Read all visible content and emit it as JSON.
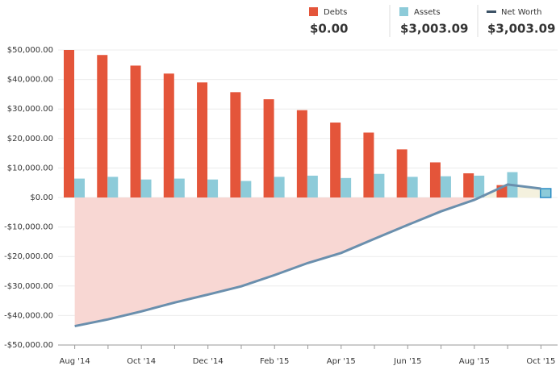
{
  "chart_data": {
    "type": "bar-line",
    "categories": [
      "Aug '14",
      null,
      "Oct '14",
      null,
      "Dec '14",
      null,
      "Feb '15",
      null,
      "Apr '15",
      null,
      "Jun '15",
      null,
      "Aug '15",
      null,
      "Oct '15"
    ],
    "series": [
      {
        "name": "Debts",
        "color": "#e4553a",
        "values": [
          50000,
          48300,
          44700,
          42000,
          39000,
          35700,
          33300,
          29600,
          25400,
          22000,
          16300,
          11900,
          8200,
          4200,
          0
        ],
        "total": {
          "value": 0,
          "label": "$0.00"
        }
      },
      {
        "name": "Assets",
        "color": "#8dcbd9",
        "values": [
          6400,
          7000,
          6100,
          6400,
          6100,
          5600,
          7000,
          7400,
          6600,
          8000,
          7000,
          7200,
          7400,
          8600,
          3003.09
        ],
        "total": {
          "value": 3003.09,
          "label": "$3,003.09"
        }
      },
      {
        "name": "Net Worth",
        "color": "#6a8fad",
        "values": [
          -43600,
          -41300,
          -38600,
          -35600,
          -32900,
          -30100,
          -26300,
          -22200,
          -18800,
          -14000,
          -9300,
          -4700,
          -800,
          4400,
          3003.09
        ],
        "total": {
          "value": 3003.09,
          "label": "$3,003.09"
        }
      }
    ],
    "ylim": [
      -50000,
      50000
    ],
    "yticks": [
      {
        "value": -50000,
        "label": "-$50,000.00"
      },
      {
        "value": -40000,
        "label": "-$40,000.00"
      },
      {
        "value": -30000,
        "label": "-$30,000.00"
      },
      {
        "value": -20000,
        "label": "-$20,000.00"
      },
      {
        "value": -10000,
        "label": "-$10,000.00"
      },
      {
        "value": 0,
        "label": "$0.00"
      },
      {
        "value": 10000,
        "label": "$10,000.00"
      },
      {
        "value": 20000,
        "label": "$20,000.00"
      },
      {
        "value": 30000,
        "label": "$30,000.00"
      },
      {
        "value": 40000,
        "label": "$40,000.00"
      },
      {
        "value": 50000,
        "label": "$50,000.00"
      }
    ],
    "grid": true
  }
}
